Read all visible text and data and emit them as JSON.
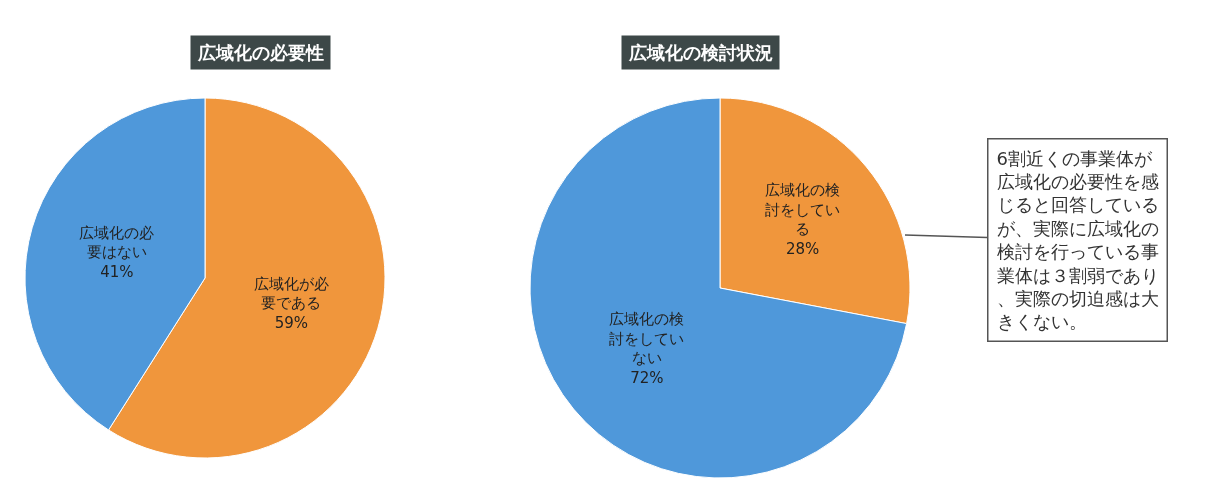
{
  "chart_data": [
    {
      "type": "pie",
      "title": "広域化の必要性",
      "categories": [
        "広域化が必要である",
        "広域化の必要はない"
      ],
      "values": [
        59,
        41
      ],
      "value_labels": [
        "59%",
        "41%"
      ],
      "colors": [
        "#f0963c",
        "#4f98da"
      ],
      "legend": false
    },
    {
      "type": "pie",
      "title": "広域化の検討状況",
      "categories": [
        "広域化の検討をしている",
        "広域化の検討をしていない"
      ],
      "values": [
        28,
        72
      ],
      "value_labels": [
        "28%",
        "72%"
      ],
      "colors": [
        "#f0963c",
        "#4f98da"
      ],
      "legend": false,
      "annotations": [
        "6割近くの事業体が広域化の必要性を感じると回答しているが、実際に広域化の検討を行っている事業体は３割弱であり、実際の切迫感は大きくない。"
      ]
    }
  ]
}
